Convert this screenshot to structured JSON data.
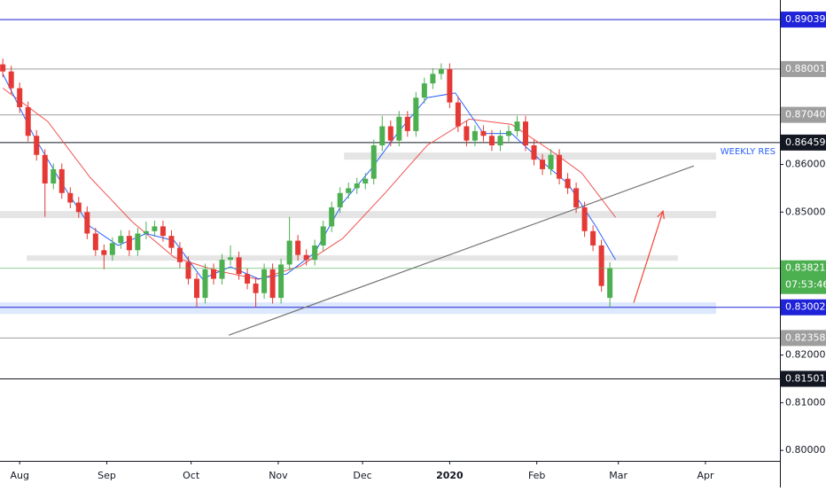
{
  "chart_data": {
    "type": "candlestick",
    "x": [
      -6,
      -3,
      0,
      3,
      6,
      9,
      12,
      15,
      18,
      21,
      24,
      27,
      30,
      33,
      36,
      39,
      42,
      45,
      48,
      51,
      54,
      57,
      60,
      63,
      66,
      69,
      72,
      75,
      78,
      81,
      84,
      87,
      90,
      93,
      96,
      99,
      102,
      105,
      108,
      111,
      114,
      117,
      120,
      123,
      126,
      129,
      132,
      135,
      138,
      141,
      144,
      147,
      150,
      153,
      156,
      159,
      162,
      165,
      168,
      171,
      174,
      177,
      180,
      183,
      186,
      189,
      192,
      195,
      198,
      201,
      204,
      207,
      210
    ],
    "open": [
      0.881,
      0.8795,
      0.876,
      0.872,
      0.866,
      0.862,
      0.856,
      0.859,
      0.854,
      0.852,
      0.85,
      0.8455,
      0.842,
      0.841,
      0.8435,
      0.845,
      0.842,
      0.8455,
      0.846,
      0.847,
      0.845,
      0.8425,
      0.8395,
      0.836,
      0.832,
      0.838,
      0.836,
      0.84,
      0.8405,
      0.837,
      0.835,
      0.833,
      0.838,
      0.832,
      0.839,
      0.844,
      0.841,
      0.84,
      0.843,
      0.847,
      0.851,
      0.854,
      0.855,
      0.856,
      0.857,
      0.864,
      0.868,
      0.865,
      0.87,
      0.867,
      0.874,
      0.877,
      0.879,
      0.88,
      0.873,
      0.868,
      0.865,
      0.867,
      0.866,
      0.864,
      0.866,
      0.867,
      0.869,
      0.864,
      0.861,
      0.859,
      0.862,
      0.857,
      0.855,
      0.851,
      0.846,
      0.843,
      0.832
    ],
    "high": [
      0.8822,
      0.8807,
      0.8772,
      0.8732,
      0.8672,
      0.8632,
      0.8602,
      0.8602,
      0.8552,
      0.8532,
      0.8512,
      0.8467,
      0.8432,
      0.8447,
      0.8462,
      0.8462,
      0.8467,
      0.848,
      0.8482,
      0.8482,
      0.8462,
      0.8437,
      0.8407,
      0.8372,
      0.8392,
      0.8392,
      0.8412,
      0.843,
      0.8417,
      0.8382,
      0.8362,
      0.8392,
      0.8392,
      0.8402,
      0.849,
      0.8452,
      0.8422,
      0.8442,
      0.8482,
      0.8522,
      0.8552,
      0.8562,
      0.8572,
      0.8582,
      0.8652,
      0.8702,
      0.8692,
      0.8712,
      0.8712,
      0.8752,
      0.8782,
      0.8802,
      0.8812,
      0.8812,
      0.8742,
      0.8692,
      0.8682,
      0.8682,
      0.8672,
      0.8672,
      0.8682,
      0.8702,
      0.8702,
      0.8652,
      0.8622,
      0.8632,
      0.8632,
      0.8582,
      0.8562,
      0.8522,
      0.8472,
      0.8442,
      0.8395
    ],
    "low": [
      0.8783,
      0.8748,
      0.8708,
      0.8648,
      0.8608,
      0.849,
      0.8548,
      0.8528,
      0.8508,
      0.8488,
      0.8443,
      0.8408,
      0.838,
      0.8398,
      0.8423,
      0.8408,
      0.8408,
      0.8443,
      0.8448,
      0.8438,
      0.8413,
      0.8383,
      0.8348,
      0.83,
      0.8308,
      0.8348,
      0.8348,
      0.8388,
      0.8358,
      0.8338,
      0.83,
      0.8318,
      0.8308,
      0.8308,
      0.8378,
      0.8398,
      0.8388,
      0.8388,
      0.8418,
      0.8458,
      0.8498,
      0.8528,
      0.8538,
      0.8548,
      0.8558,
      0.8628,
      0.8638,
      0.8638,
      0.8658,
      0.8658,
      0.8728,
      0.8758,
      0.8778,
      0.8718,
      0.8668,
      0.8638,
      0.8638,
      0.8648,
      0.8628,
      0.8628,
      0.8648,
      0.8658,
      0.8628,
      0.8598,
      0.8578,
      0.8578,
      0.8558,
      0.8538,
      0.8498,
      0.8448,
      0.8418,
      0.8333,
      0.83
    ],
    "close": [
      0.8795,
      0.876,
      0.872,
      0.866,
      0.862,
      0.856,
      0.859,
      0.854,
      0.852,
      0.85,
      0.8455,
      0.842,
      0.841,
      0.8435,
      0.845,
      0.842,
      0.8455,
      0.846,
      0.847,
      0.845,
      0.8425,
      0.8395,
      0.836,
      0.832,
      0.838,
      0.836,
      0.84,
      0.8405,
      0.837,
      0.835,
      0.833,
      0.838,
      0.832,
      0.839,
      0.844,
      0.841,
      0.84,
      0.843,
      0.847,
      0.851,
      0.854,
      0.855,
      0.856,
      0.857,
      0.864,
      0.868,
      0.865,
      0.87,
      0.867,
      0.874,
      0.877,
      0.879,
      0.88,
      0.873,
      0.868,
      0.865,
      0.867,
      0.866,
      0.864,
      0.866,
      0.867,
      0.869,
      0.864,
      0.861,
      0.859,
      0.862,
      0.857,
      0.855,
      0.851,
      0.846,
      0.843,
      0.8345,
      0.8382
    ],
    "up_color": "#4caf50",
    "down_color": "#e53935",
    "xlim": [
      -7,
      270.5
    ],
    "ylim": [
      0.7978,
      0.8945
    ],
    "xticks": [
      {
        "value": 0,
        "label": "Aug"
      },
      {
        "value": 31,
        "label": "Sep"
      },
      {
        "value": 61,
        "label": "Oct"
      },
      {
        "value": 92,
        "label": "Nov"
      },
      {
        "value": 122,
        "label": "Dec"
      },
      {
        "value": 153,
        "label": "2020",
        "bold": true
      },
      {
        "value": 184,
        "label": "Feb"
      },
      {
        "value": 213,
        "label": "Mar"
      },
      {
        "value": 244,
        "label": "Apr"
      }
    ],
    "yticks": [
      {
        "value": 0.86,
        "label": "0.86000"
      },
      {
        "value": 0.85,
        "label": "0.85000"
      },
      {
        "value": 0.82,
        "label": "0.82000"
      },
      {
        "value": 0.81,
        "label": "0.81000"
      },
      {
        "value": 0.8,
        "label": "0.80000"
      }
    ],
    "moving_averages": [
      {
        "color": "#ef5350",
        "x": [
          -6,
          10,
          25,
          40,
          55,
          70,
          85,
          100,
          115,
          130,
          145,
          160,
          175,
          190,
          200,
          212
        ],
        "values": [
          0.876,
          0.869,
          0.8573,
          0.848,
          0.8405,
          0.8377,
          0.8359,
          0.8387,
          0.8445,
          0.854,
          0.864,
          0.8695,
          0.8684,
          0.8625,
          0.8582,
          0.8489
        ]
      },
      {
        "color": "#2962ff",
        "x": [
          -6,
          5,
          15,
          25,
          35,
          45,
          55,
          65,
          75,
          85,
          95,
          105,
          115,
          125,
          135,
          145,
          155,
          165,
          175,
          185,
          195,
          205,
          212
        ],
        "values": [
          0.879,
          0.866,
          0.856,
          0.847,
          0.843,
          0.8455,
          0.844,
          0.836,
          0.8385,
          0.836,
          0.837,
          0.8415,
          0.852,
          0.859,
          0.867,
          0.874,
          0.875,
          0.8665,
          0.8665,
          0.861,
          0.856,
          0.847,
          0.84
        ]
      }
    ],
    "zones": [
      {
        "x": [
          115.4,
          247.8
        ],
        "y": [
          0.861,
          0.86249
        ],
        "color": "#e0e0e0"
      },
      {
        "x": [
          -7,
          247.8
        ],
        "y": [
          0.84873,
          0.85022
        ],
        "color": "#e0e0e0"
      },
      {
        "x": [
          2.5,
          234.2
        ],
        "y": [
          0.8398,
          0.84092
        ],
        "color": "#e0e0e0"
      },
      {
        "x": [
          -7,
          247.8
        ],
        "y": [
          0.82864,
          0.83106
        ],
        "color": "#d6e4fb"
      }
    ],
    "levels": [
      {
        "value": 0.89039,
        "label": "0.89039",
        "color": "#1e22d8"
      },
      {
        "value": 0.88001,
        "label": "0.88001",
        "color": "#9e9e9e"
      },
      {
        "value": 0.8704,
        "label": "0.87040",
        "color": "#9e9e9e"
      },
      {
        "value": 0.86459,
        "label": "0.86459",
        "color": "#131722"
      },
      {
        "value": 0.83002,
        "label": "0.83002",
        "color": "#1e22d8"
      },
      {
        "value": 0.82358,
        "label": "0.82358",
        "color": "#9e9e9e"
      },
      {
        "value": 0.81501,
        "label": "0.81501",
        "color": "#131722"
      }
    ],
    "current_price": {
      "value": 0.83821,
      "label": "0.83821",
      "color": "#4caf50",
      "countdown": "07:53:46"
    },
    "annotation": "WEEKLY RES",
    "trendline": {
      "x": [
        74.4,
        239.9
      ],
      "y": [
        0.82418,
        0.8597
      ],
      "color": "#757575"
    },
    "arrow": {
      "x": [
        218.5,
        228.9
      ],
      "y": [
        0.831,
        0.8502
      ],
      "color": "#f44336"
    }
  }
}
